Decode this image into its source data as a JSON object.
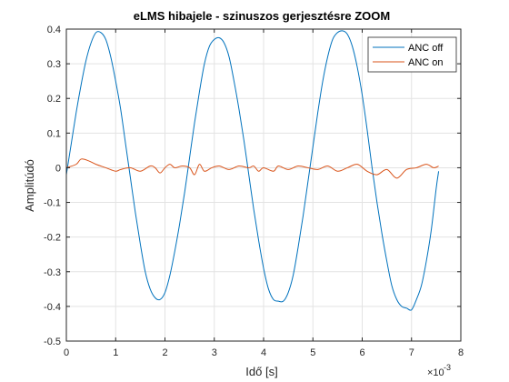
{
  "chart_data": {
    "type": "line",
    "title": "eLMS hibajele - szinuszos gerjesztésre ZOOM",
    "xlabel": "Idő [s]",
    "ylabel": "Amplitúdó",
    "x_multiplier_label": "×10",
    "x_multiplier_exponent": "-3",
    "xlim": [
      0,
      8
    ],
    "ylim": [
      -0.5,
      0.4
    ],
    "xticks": [
      0,
      1,
      2,
      3,
      4,
      5,
      6,
      7,
      8
    ],
    "yticks": [
      -0.5,
      -0.4,
      -0.3,
      -0.2,
      -0.1,
      0,
      0.1,
      0.2,
      0.3,
      0.4
    ],
    "xtick_labels": [
      "0",
      "1",
      "2",
      "3",
      "4",
      "5",
      "6",
      "7",
      "8"
    ],
    "ytick_labels": [
      "-0.5",
      "-0.4",
      "-0.3",
      "-0.2",
      "-0.1",
      "0",
      "0.1",
      "0.2",
      "0.3",
      "0.4"
    ],
    "grid": true,
    "legend_position": "top-right",
    "series": [
      {
        "name": "ANC off",
        "color": "#0072BD",
        "x": [
          0,
          0.1,
          0.2,
          0.3,
          0.4,
          0.5,
          0.6,
          0.7,
          0.8,
          0.9,
          1.0,
          1.1,
          1.2,
          1.3,
          1.4,
          1.5,
          1.6,
          1.7,
          1.8,
          1.9,
          2.0,
          2.1,
          2.2,
          2.3,
          2.4,
          2.5,
          2.6,
          2.7,
          2.8,
          2.9,
          3.0,
          3.1,
          3.2,
          3.3,
          3.4,
          3.5,
          3.6,
          3.7,
          3.8,
          3.9,
          4.0,
          4.1,
          4.2,
          4.3,
          4.4,
          4.5,
          4.6,
          4.7,
          4.8,
          4.9,
          5.0,
          5.1,
          5.2,
          5.3,
          5.4,
          5.5,
          5.6,
          5.7,
          5.8,
          5.9,
          6.0,
          6.1,
          6.2,
          6.3,
          6.4,
          6.5,
          6.6,
          6.7,
          6.8,
          6.9,
          7.0,
          7.1,
          7.2,
          7.3,
          7.4,
          7.5,
          7.55
        ],
        "y": [
          -0.02,
          0.07,
          0.16,
          0.24,
          0.31,
          0.36,
          0.39,
          0.39,
          0.37,
          0.32,
          0.25,
          0.17,
          0.07,
          -0.03,
          -0.13,
          -0.22,
          -0.3,
          -0.35,
          -0.375,
          -0.38,
          -0.36,
          -0.31,
          -0.24,
          -0.16,
          -0.07,
          0.03,
          0.13,
          0.22,
          0.3,
          0.35,
          0.37,
          0.375,
          0.36,
          0.32,
          0.25,
          0.17,
          0.08,
          -0.02,
          -0.12,
          -0.21,
          -0.29,
          -0.35,
          -0.38,
          -0.385,
          -0.385,
          -0.36,
          -0.31,
          -0.23,
          -0.14,
          -0.04,
          0.06,
          0.16,
          0.25,
          0.32,
          0.37,
          0.39,
          0.395,
          0.385,
          0.35,
          0.29,
          0.21,
          0.11,
          0.0,
          -0.1,
          -0.19,
          -0.27,
          -0.34,
          -0.38,
          -0.4,
          -0.405,
          -0.41,
          -0.38,
          -0.34,
          -0.27,
          -0.18,
          -0.06,
          -0.01
        ]
      },
      {
        "name": "ANC on",
        "color": "#D95319",
        "x": [
          0,
          0.2,
          0.3,
          0.45,
          0.6,
          0.8,
          1.0,
          1.1,
          1.3,
          1.5,
          1.7,
          1.8,
          1.9,
          2.0,
          2.1,
          2.2,
          2.35,
          2.5,
          2.6,
          2.7,
          2.8,
          2.95,
          3.1,
          3.3,
          3.5,
          3.7,
          3.8,
          3.9,
          4.0,
          4.2,
          4.3,
          4.5,
          4.7,
          4.9,
          5.1,
          5.3,
          5.5,
          5.7,
          5.9,
          6.1,
          6.3,
          6.5,
          6.7,
          6.9,
          7.1,
          7.3,
          7.45,
          7.55
        ],
        "y": [
          0.0,
          0.01,
          0.025,
          0.02,
          0.01,
          0.0,
          -0.01,
          -0.005,
          0.0,
          -0.01,
          0.005,
          0.0,
          -0.015,
          0.0,
          0.01,
          0.0,
          0.005,
          0.0,
          -0.02,
          0.01,
          -0.01,
          0.0,
          0.005,
          -0.005,
          0.005,
          0.0,
          0.005,
          -0.01,
          0.0,
          -0.01,
          0.005,
          -0.005,
          0.005,
          0.0,
          -0.005,
          0.005,
          -0.01,
          0.0,
          0.01,
          -0.01,
          -0.02,
          -0.005,
          -0.03,
          -0.005,
          0.0,
          0.01,
          0.0,
          0.005
        ]
      }
    ]
  }
}
